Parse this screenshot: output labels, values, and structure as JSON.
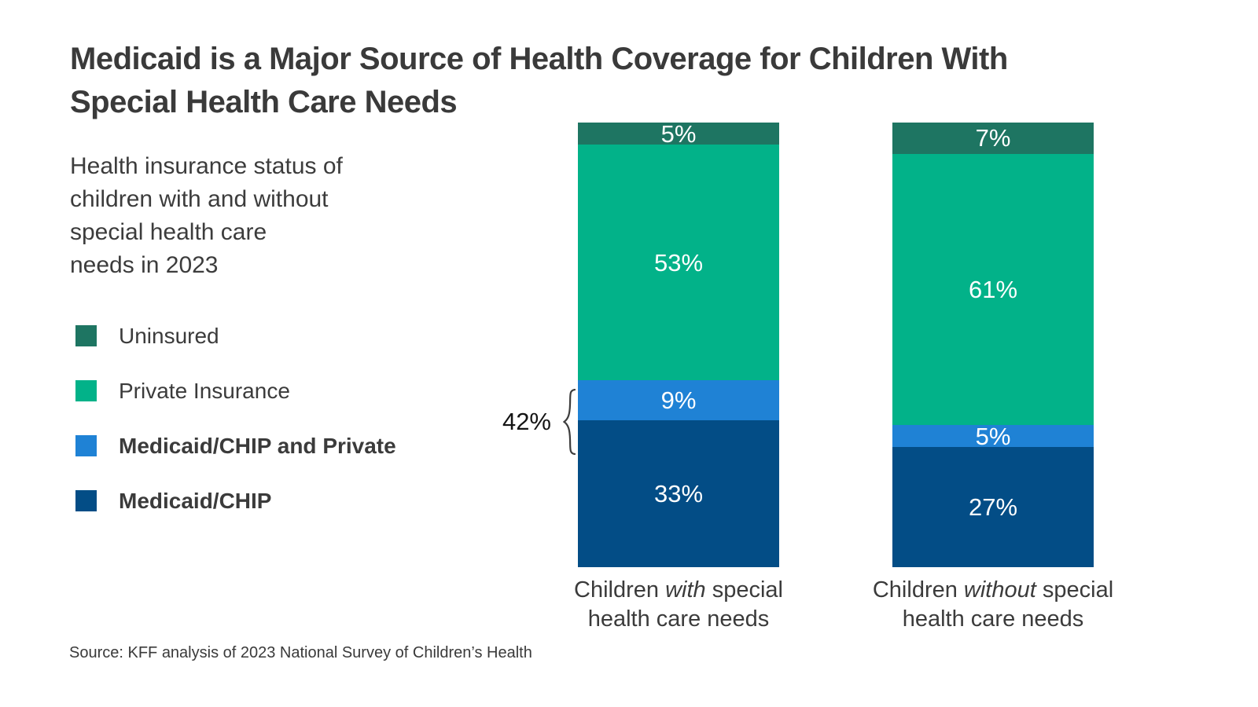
{
  "header": {
    "title": "Medicaid is a Major Source of Health Coverage for Children With\nSpecial Health Care Needs",
    "subtitle": "Health insurance status of\nchildren with and without\nspecial health care\nneeds in 2023"
  },
  "legend": {
    "items": [
      {
        "label": "Uninsured",
        "color": "#1e7562",
        "bold": false
      },
      {
        "label": "Private Insurance",
        "color": "#02b289",
        "bold": false
      },
      {
        "label": "Medicaid/CHIP and Private",
        "color": "#1f82d5",
        "bold": true
      },
      {
        "label": "Medicaid/CHIP",
        "color": "#034d86",
        "bold": true
      }
    ]
  },
  "chart_data": {
    "type": "bar",
    "stacked": true,
    "unit": "%",
    "ylim": [
      0,
      100
    ],
    "grid": false,
    "legend_position": "left",
    "categories": [
      "Children with special health care needs",
      "Children without special health care needs"
    ],
    "series": [
      {
        "name": "Uninsured",
        "color": "#1e7562",
        "values": [
          5,
          7
        ]
      },
      {
        "name": "Private Insurance",
        "color": "#02b289",
        "values": [
          53,
          61
        ]
      },
      {
        "name": "Medicaid/CHIP and Private",
        "color": "#1f82d5",
        "values": [
          9,
          5
        ]
      },
      {
        "name": "Medicaid/CHIP",
        "color": "#034d86",
        "values": [
          33,
          27
        ]
      }
    ],
    "annotation": {
      "text": "42%"
    },
    "x_labels": [
      {
        "pre": "Children ",
        "italic": "with",
        "post": " special",
        "line2": "health care needs"
      },
      {
        "pre": "Children ",
        "italic": "without",
        "post": " special",
        "line2": "health care needs"
      }
    ]
  },
  "footer": {
    "source": "Source: KFF analysis of 2023 National Survey of Children’s Health"
  }
}
